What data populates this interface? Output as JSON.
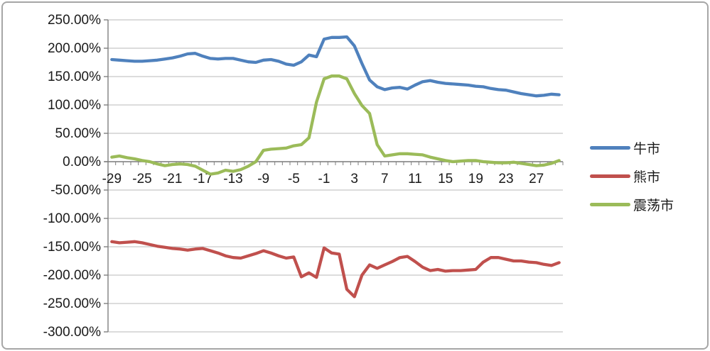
{
  "window": {
    "background": "#ffffff",
    "border_color": "#a6a6a6"
  },
  "chart_data": {
    "type": "line",
    "title": "",
    "xlabel": "",
    "ylabel": "",
    "grid": true,
    "legend_position": "right",
    "x": [
      -29,
      -28,
      -27,
      -26,
      -25,
      -24,
      -23,
      -22,
      -21,
      -20,
      -19,
      -18,
      -17,
      -16,
      -15,
      -14,
      -13,
      -12,
      -11,
      -10,
      -9,
      -8,
      -7,
      -6,
      -5,
      -4,
      -3,
      -2,
      -1,
      0,
      1,
      2,
      3,
      4,
      5,
      6,
      7,
      8,
      9,
      10,
      11,
      12,
      13,
      14,
      15,
      16,
      17,
      18,
      19,
      20,
      21,
      22,
      23,
      24,
      25,
      26,
      27,
      28,
      29,
      30
    ],
    "x_axis": {
      "tick_values": [
        -29,
        -25,
        -21,
        -17,
        -13,
        -9,
        -5,
        -1,
        3,
        7,
        11,
        15,
        19,
        23,
        27
      ],
      "tick_labels": [
        "-29",
        "-25",
        "-21",
        "-17",
        "-13",
        "-9",
        "-5",
        "-1",
        "3",
        "7",
        "11",
        "15",
        "19",
        "23",
        "27"
      ],
      "axis_color": "#7f7f7f",
      "label_color": "#1a1a1a"
    },
    "y_axis": {
      "min": -300,
      "max": 250,
      "step": 50,
      "unit": "%",
      "tick_values": [
        250,
        200,
        150,
        100,
        50,
        0,
        -50,
        -100,
        -150,
        -200,
        -250,
        -300
      ],
      "tick_labels": [
        "250.00%",
        "200.00%",
        "150.00%",
        "100.00%",
        "50.00%",
        "0.00%",
        "-50.00%",
        "-100.00%",
        "-150.00%",
        "-200.00%",
        "-250.00%",
        "-300.00%"
      ],
      "gridline_color": "#c6c6c6",
      "label_color": "#1a1a1a"
    },
    "series": [
      {
        "name": "牛市",
        "color": "#4f81bd",
        "values": [
          180,
          179,
          178,
          177,
          177,
          178,
          179,
          181,
          183,
          186,
          190,
          191,
          186,
          182,
          181,
          182,
          182,
          179,
          176,
          175,
          179,
          180,
          177,
          172,
          170,
          176,
          188,
          185,
          216,
          219,
          219,
          220,
          204,
          173,
          144,
          132,
          127,
          130,
          131,
          128,
          135,
          141,
          143,
          140,
          138,
          137,
          136,
          135,
          133,
          132,
          129,
          127,
          126,
          123,
          120,
          118,
          116,
          117,
          119,
          118
        ]
      },
      {
        "name": "熊市",
        "color": "#c0504d",
        "values": [
          -141,
          -143,
          -142,
          -141,
          -143,
          -146,
          -149,
          -151,
          -153,
          -154,
          -156,
          -154,
          -153,
          -157,
          -161,
          -166,
          -169,
          -170,
          -166,
          -162,
          -157,
          -161,
          -166,
          -170,
          -168,
          -203,
          -196,
          -204,
          -152,
          -161,
          -163,
          -225,
          -238,
          -200,
          -182,
          -188,
          -182,
          -176,
          -169,
          -167,
          -176,
          -186,
          -192,
          -190,
          -193,
          -192,
          -192,
          -191,
          -190,
          -177,
          -169,
          -169,
          -172,
          -175,
          -175,
          -177,
          -178,
          -181,
          -183,
          -178
        ]
      },
      {
        "name": "震荡市",
        "color": "#9bbb59",
        "values": [
          8,
          10,
          7,
          5,
          2,
          0,
          -4,
          -7,
          -5,
          -4,
          -5,
          -8,
          -15,
          -22,
          -20,
          -15,
          -17,
          -14,
          -8,
          0,
          20,
          22,
          23,
          24,
          28,
          30,
          42,
          105,
          146,
          151,
          151,
          146,
          120,
          99,
          85,
          30,
          10,
          12,
          14,
          14,
          13,
          12,
          8,
          5,
          2,
          0,
          1,
          2,
          2,
          0,
          -1,
          -2,
          -2,
          -1,
          -3,
          -5,
          -7,
          -6,
          -3,
          2
        ]
      }
    ]
  }
}
